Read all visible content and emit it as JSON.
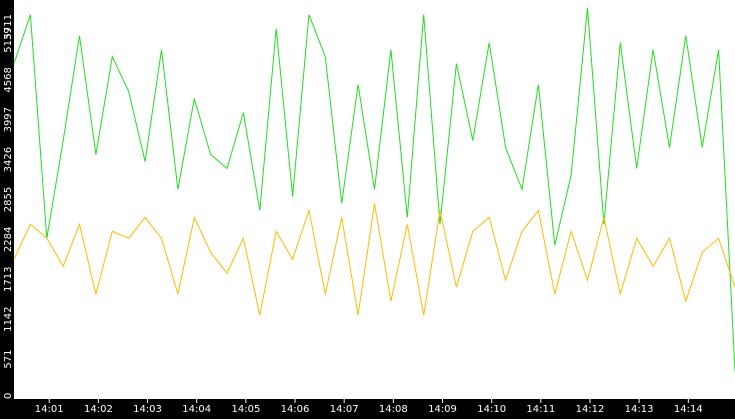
{
  "chart_data": {
    "type": "line",
    "title": "",
    "xlabel": "",
    "ylabel": "",
    "ylim": [
      0,
      5711
    ],
    "xlim": [
      "14:00:17",
      "14:14:57"
    ],
    "grid": false,
    "legend": "none",
    "background_color": "#000000",
    "plot_background_color": "#ffffff",
    "y_ticks": [
      0,
      571,
      1142,
      1713,
      2284,
      2855,
      3426,
      3997,
      4568,
      5139,
      5711
    ],
    "x_ticks": [
      "14:01",
      "14:02",
      "14:03",
      "14:04",
      "14:05",
      "14:06",
      "14:07",
      "14:08",
      "14:09",
      "14:10",
      "14:11",
      "14:12",
      "14:13",
      "14:14"
    ],
    "series": [
      {
        "color": "#22dd22",
        "x": [
          "14:00:17",
          "14:00:37",
          "14:00:57",
          "14:01:17",
          "14:01:37",
          "14:01:57",
          "14:02:17",
          "14:02:37",
          "14:02:57",
          "14:03:17",
          "14:03:37",
          "14:03:57",
          "14:04:17",
          "14:04:37",
          "14:04:57",
          "14:05:17",
          "14:05:37",
          "14:05:57",
          "14:06:17",
          "14:06:37",
          "14:06:57",
          "14:07:17",
          "14:07:37",
          "14:07:57",
          "14:08:17",
          "14:08:37",
          "14:08:57",
          "14:09:17",
          "14:09:37",
          "14:09:57",
          "14:10:17",
          "14:10:37",
          "14:10:57",
          "14:11:17",
          "14:11:37",
          "14:11:57",
          "14:12:17",
          "14:12:37",
          "14:12:57",
          "14:13:17",
          "14:13:37",
          "14:13:57",
          "14:14:17",
          "14:14:37",
          "14:14:57"
        ],
        "values": [
          4800,
          5500,
          2300,
          3700,
          5200,
          3500,
          4900,
          4400,
          3400,
          5000,
          3000,
          4300,
          3500,
          3300,
          4100,
          2700,
          5300,
          2900,
          5500,
          4900,
          2800,
          4500,
          3000,
          5000,
          2600,
          5500,
          2500,
          4800,
          3700,
          5100,
          3600,
          3000,
          4500,
          2200,
          3200,
          5600,
          2500,
          5100,
          3300,
          5000,
          3600,
          5200,
          3600,
          5000,
          400
        ]
      },
      {
        "color": "#ffbb00",
        "x": [
          "14:00:17",
          "14:00:37",
          "14:00:57",
          "14:01:17",
          "14:01:37",
          "14:01:57",
          "14:02:17",
          "14:02:37",
          "14:02:57",
          "14:03:17",
          "14:03:37",
          "14:03:57",
          "14:04:17",
          "14:04:37",
          "14:04:57",
          "14:05:17",
          "14:05:37",
          "14:05:57",
          "14:06:17",
          "14:06:37",
          "14:06:57",
          "14:07:17",
          "14:07:37",
          "14:07:57",
          "14:08:17",
          "14:08:37",
          "14:08:57",
          "14:09:17",
          "14:09:37",
          "14:09:57",
          "14:10:17",
          "14:10:37",
          "14:10:57",
          "14:11:17",
          "14:11:37",
          "14:11:57",
          "14:12:17",
          "14:12:37",
          "14:12:57",
          "14:13:17",
          "14:13:37",
          "14:13:57",
          "14:14:17",
          "14:14:37",
          "14:14:57"
        ],
        "values": [
          2000,
          2500,
          2300,
          1900,
          2500,
          1500,
          2400,
          2300,
          2600,
          2300,
          1500,
          2600,
          2100,
          1800,
          2300,
          1200,
          2400,
          2000,
          2700,
          1500,
          2600,
          1200,
          2800,
          1400,
          2500,
          1200,
          2700,
          1600,
          2400,
          2600,
          1700,
          2400,
          2700,
          1500,
          2400,
          1700,
          2600,
          1500,
          2300,
          1900,
          2300,
          1400,
          2100,
          2300,
          1600
        ]
      }
    ]
  }
}
